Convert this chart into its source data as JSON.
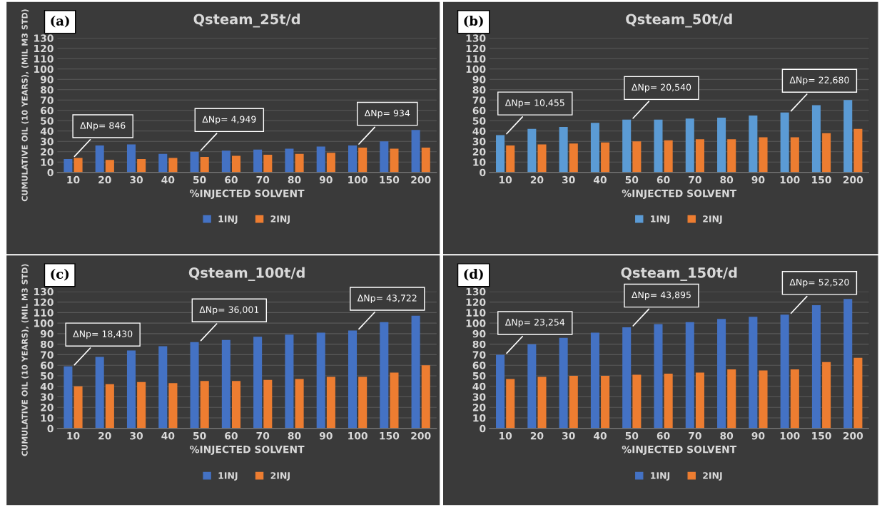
{
  "chart_data": [
    {
      "type": "bar",
      "title": "Qsteam_25t/d",
      "xlabel": "%INJECTED SOLVENT",
      "ylabel": "CUMULATIVE OIL (10 YEARS), (MIL M3 STD)",
      "categories": [
        "10",
        "20",
        "30",
        "40",
        "50",
        "60",
        "70",
        "80",
        "90",
        "100",
        "150",
        "200"
      ],
      "series": [
        {
          "name": "1INJ",
          "color": "#4472c4",
          "values": [
            13,
            26,
            27,
            18,
            20,
            21,
            22,
            23,
            25,
            26,
            30,
            41
          ]
        },
        {
          "name": "2INJ",
          "color": "#ed7d31",
          "values": [
            14,
            12,
            13,
            14,
            15,
            16,
            17,
            18,
            19,
            24,
            23,
            24
          ]
        }
      ],
      "ylim": [
        0,
        130
      ],
      "yticks": [
        0,
        10,
        20,
        30,
        40,
        50,
        60,
        70,
        80,
        90,
        100,
        110,
        120,
        130
      ],
      "grid": "y",
      "legend": "bottom",
      "annotations": [
        "(a)",
        {
          "text": "ΔNp= 846",
          "x": "10",
          "y": 14
        },
        {
          "text": "ΔNp= 4,949",
          "x": "50",
          "y": 20
        },
        {
          "text": "ΔNp= 934",
          "x": "100",
          "y": 26
        }
      ]
    },
    {
      "type": "bar",
      "title": "Qsteam_50t/d",
      "xlabel": "%INJECTED SOLVENT",
      "categories": [
        "10",
        "20",
        "30",
        "40",
        "50",
        "60",
        "70",
        "80",
        "90",
        "100",
        "150",
        "200"
      ],
      "series": [
        {
          "name": "1INJ",
          "color": "#5b9bd5",
          "values": [
            36,
            42,
            44,
            48,
            51,
            51,
            52,
            53,
            55,
            58,
            65,
            70
          ]
        },
        {
          "name": "2INJ",
          "color": "#ed7d31",
          "values": [
            26,
            27,
            28,
            29,
            30,
            31,
            32,
            32,
            34,
            34,
            38,
            42
          ]
        }
      ],
      "ylim": [
        0,
        130
      ],
      "yticks": [
        0,
        10,
        20,
        30,
        40,
        50,
        60,
        70,
        80,
        90,
        100,
        110,
        120,
        130
      ],
      "grid": "y",
      "legend": "bottom",
      "annotations": [
        "(b)",
        {
          "text": "ΔNp= 10,455",
          "x": "10",
          "y": 36
        },
        {
          "text": "ΔNp= 20,540",
          "x": "50",
          "y": 51
        },
        {
          "text": "ΔNp= 22,680",
          "x": "100",
          "y": 58
        }
      ]
    },
    {
      "type": "bar",
      "title": "Qsteam_100t/d",
      "xlabel": "%INJECTED SOLVENT",
      "ylabel": "CUMULATIVE OIL (10 YEARS), (MIL M3 STD)",
      "categories": [
        "10",
        "20",
        "30",
        "40",
        "50",
        "60",
        "70",
        "80",
        "90",
        "100",
        "150",
        "200"
      ],
      "series": [
        {
          "name": "1INJ",
          "color": "#4472c4",
          "values": [
            59,
            68,
            74,
            78,
            82,
            84,
            87,
            89,
            91,
            93,
            101,
            107
          ]
        },
        {
          "name": "2INJ",
          "color": "#ed7d31",
          "values": [
            40,
            42,
            44,
            43,
            45,
            45,
            46,
            47,
            49,
            49,
            53,
            60
          ]
        }
      ],
      "ylim": [
        0,
        130
      ],
      "yticks": [
        0,
        10,
        20,
        30,
        40,
        50,
        60,
        70,
        80,
        90,
        100,
        110,
        120,
        130
      ],
      "grid": "y",
      "legend": "bottom",
      "annotations": [
        "(c)",
        {
          "text": "ΔNp= 18,430",
          "x": "10",
          "y": 59
        },
        {
          "text": "ΔNp= 36,001",
          "x": "50",
          "y": 82
        },
        {
          "text": "ΔNp= 43,722",
          "x": "100",
          "y": 93
        }
      ]
    },
    {
      "type": "bar",
      "title": "Qsteam_150t/d",
      "xlabel": "%INJECTED SOLVENT",
      "categories": [
        "10",
        "20",
        "30",
        "40",
        "50",
        "60",
        "70",
        "80",
        "90",
        "100",
        "150",
        "200"
      ],
      "series": [
        {
          "name": "1INJ",
          "color": "#4472c4",
          "values": [
            70,
            80,
            86,
            91,
            96,
            99,
            101,
            104,
            106,
            108,
            117,
            123
          ]
        },
        {
          "name": "2INJ",
          "color": "#ed7d31",
          "values": [
            47,
            49,
            50,
            50,
            51,
            52,
            53,
            56,
            55,
            56,
            63,
            67
          ]
        }
      ],
      "ylim": [
        0,
        130
      ],
      "yticks": [
        0,
        10,
        20,
        30,
        40,
        50,
        60,
        70,
        80,
        90,
        100,
        110,
        120,
        130
      ],
      "grid": "y",
      "legend": "bottom",
      "annotations": [
        "(d)",
        {
          "text": "ΔNp= 23,254",
          "x": "10",
          "y": 70
        },
        {
          "text": "ΔNp= 43,895",
          "x": "50",
          "y": 96
        },
        {
          "text": "ΔNp= 52,520",
          "x": "100",
          "y": 108
        }
      ]
    }
  ]
}
